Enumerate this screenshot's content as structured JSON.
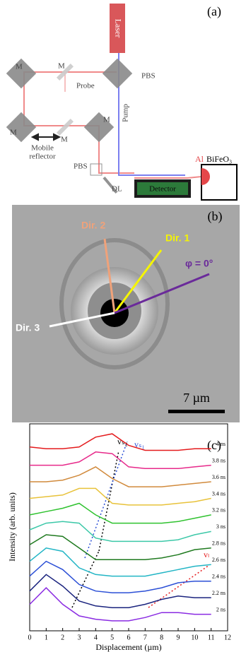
{
  "panel_a": {
    "label": "(a)",
    "laser": "Laser",
    "pbs_top": "PBS",
    "pbs_bottom": "PBS",
    "probe": "Probe",
    "pump": "Pump",
    "m1": "M",
    "m2": "M",
    "m3": "M",
    "m4": "M",
    "m5": "M",
    "mobile": [
      "Mobile",
      "reflector"
    ],
    "dl": "DL",
    "detector": "Detector",
    "al": "Al",
    "sample": "BiFeO₃"
  },
  "panel_b": {
    "label": "(b)",
    "dir1": "Dir. 1",
    "dir2": "Dir. 2",
    "dir3": "Dir. 3",
    "phi": "φ = 0°",
    "scale": "7 µm"
  },
  "chart_data": {
    "type": "line",
    "label": "(c)",
    "xlabel": "Displacement (µm)",
    "ylabel": "Intensity (arb. units)",
    "annotations": [
      "vₛ₂",
      "vₛ₁",
      "vₗ"
    ],
    "x": [
      0,
      1,
      2,
      3,
      4,
      5,
      6,
      7,
      8,
      9,
      10,
      11
    ],
    "xlim": [
      0,
      12
    ],
    "xticks": [
      0,
      1,
      2,
      3,
      4,
      5,
      6,
      7,
      8,
      9,
      10,
      11,
      12
    ],
    "ylim": [
      0,
      12.5
    ],
    "series": [
      {
        "name": "4 ns",
        "color": "#e41a1c",
        "values": [
          11.1,
          11.0,
          11.0,
          11.1,
          11.7,
          11.9,
          11.2,
          10.9,
          10.9,
          10.9,
          11.0,
          11.0
        ]
      },
      {
        "name": "3.8 ns",
        "color": "#e7298a",
        "values": [
          10.0,
          10.0,
          10.0,
          10.2,
          10.8,
          10.7,
          9.9,
          9.8,
          9.8,
          9.8,
          9.9,
          10.0
        ]
      },
      {
        "name": "3.6 ns",
        "color": "#d18a3c",
        "values": [
          9.0,
          9.0,
          9.1,
          9.4,
          9.9,
          9.2,
          8.7,
          8.7,
          8.7,
          8.8,
          8.9,
          9.0
        ]
      },
      {
        "name": "3.4 ns",
        "color": "#e8c23a",
        "values": [
          8.0,
          8.1,
          8.2,
          8.6,
          8.6,
          7.7,
          7.6,
          7.6,
          7.6,
          7.7,
          7.8,
          8.0
        ]
      },
      {
        "name": "3.2 ns",
        "color": "#2fc22f",
        "values": [
          7.0,
          7.2,
          7.4,
          7.7,
          7.0,
          6.5,
          6.5,
          6.5,
          6.5,
          6.6,
          6.8,
          7.0
        ]
      },
      {
        "name": "3 ns",
        "color": "#3cc8a8",
        "values": [
          6.1,
          6.5,
          6.6,
          6.5,
          5.6,
          5.4,
          5.4,
          5.4,
          5.4,
          5.5,
          5.8,
          6.0
        ]
      },
      {
        "name": "2.8 ns",
        "color": "#1f7a1f",
        "values": [
          5.2,
          5.8,
          5.7,
          5.0,
          4.3,
          4.3,
          4.3,
          4.3,
          4.4,
          4.6,
          4.9,
          5.0
        ]
      },
      {
        "name": "2.6 ns",
        "color": "#22b5c5",
        "values": [
          4.2,
          5.0,
          4.8,
          3.8,
          3.4,
          3.3,
          3.3,
          3.3,
          3.5,
          3.7,
          3.9,
          4.0
        ]
      },
      {
        "name": "2.4 ns",
        "color": "#2b4fd6",
        "values": [
          3.3,
          4.2,
          3.7,
          2.8,
          2.4,
          2.3,
          2.3,
          2.4,
          2.6,
          2.9,
          3.0,
          3.0
        ]
      },
      {
        "name": "2.2 ns",
        "color": "#1a237e",
        "values": [
          2.4,
          3.4,
          2.7,
          1.8,
          1.5,
          1.4,
          1.4,
          1.6,
          1.9,
          2.1,
          2.0,
          2.0
        ]
      },
      {
        "name": "2 ns",
        "color": "#8a2be2",
        "values": [
          1.6,
          2.6,
          1.6,
          0.9,
          0.7,
          0.6,
          0.6,
          0.8,
          1.1,
          1.1,
          1.0,
          1.0
        ]
      }
    ]
  }
}
